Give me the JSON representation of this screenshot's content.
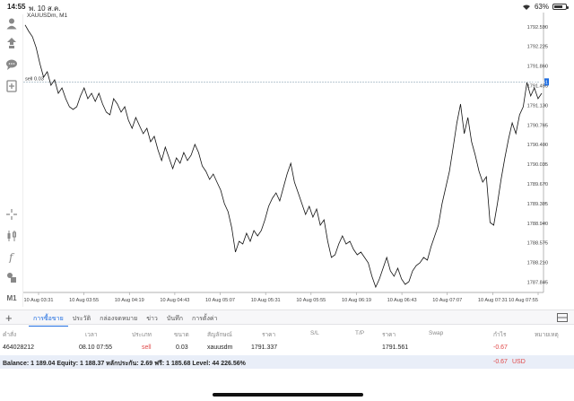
{
  "status_bar": {
    "time": "14:55",
    "date": "พ. 10 ส.ค.",
    "battery": "63%",
    "battery_level": 0.63
  },
  "chart": {
    "symbol": "XAUUSDm, M1",
    "bid_label": "sell 0.03",
    "current_price_badge": "1791.561",
    "colors": {
      "line": "#111111",
      "bid_line": "#8fa8b8",
      "badge": "#1e6ce0",
      "grid": "#dddddd"
    }
  },
  "chart_data": {
    "type": "line",
    "x_ticks": [
      "10 Aug 03:31",
      "10 Aug 03:55",
      "10 Aug 04:19",
      "10 Aug 04:43",
      "10 Aug 05:07",
      "10 Aug 05:31",
      "10 Aug 05:55",
      "10 Aug 06:19",
      "10 Aug 06:43",
      "10 Aug 07:07",
      "10 Aug 07:31",
      "10 Aug 07:55"
    ],
    "y_ticks": [
      "1792.590",
      "1792.225",
      "1791.860",
      "1791.495",
      "1791.130",
      "1790.765",
      "1790.400",
      "1790.035",
      "1789.670",
      "1789.305",
      "1788.940",
      "1788.575",
      "1788.210",
      "1787.845"
    ],
    "ylim": [
      1787.65,
      1792.75
    ],
    "xlim": [
      0,
      140
    ],
    "values": [
      1792.62,
      1792.5,
      1792.4,
      1792.2,
      1791.9,
      1791.65,
      1791.75,
      1791.5,
      1791.6,
      1791.35,
      1791.45,
      1791.25,
      1791.1,
      1791.05,
      1791.1,
      1791.3,
      1791.45,
      1791.25,
      1791.35,
      1791.2,
      1791.35,
      1791.15,
      1791.0,
      1790.95,
      1791.25,
      1791.15,
      1791.0,
      1791.1,
      1790.85,
      1790.7,
      1790.9,
      1790.75,
      1790.6,
      1790.7,
      1790.45,
      1790.55,
      1790.3,
      1790.1,
      1790.35,
      1790.15,
      1789.95,
      1790.15,
      1790.05,
      1790.25,
      1790.1,
      1790.2,
      1790.4,
      1790.25,
      1790.0,
      1789.9,
      1789.75,
      1789.85,
      1789.7,
      1789.55,
      1789.3,
      1789.15,
      1788.85,
      1788.4,
      1788.6,
      1788.55,
      1788.75,
      1788.6,
      1788.8,
      1788.7,
      1788.8,
      1789.0,
      1789.25,
      1789.4,
      1789.5,
      1789.35,
      1789.6,
      1789.85,
      1790.05,
      1789.7,
      1789.5,
      1789.3,
      1789.1,
      1789.25,
      1789.05,
      1789.2,
      1788.9,
      1789.0,
      1788.6,
      1788.3,
      1788.35,
      1788.55,
      1788.7,
      1788.55,
      1788.6,
      1788.45,
      1788.35,
      1788.4,
      1788.3,
      1788.2,
      1787.95,
      1787.75,
      1787.9,
      1788.1,
      1788.3,
      1788.05,
      1787.95,
      1788.1,
      1787.9,
      1787.8,
      1787.85,
      1788.05,
      1788.15,
      1788.2,
      1788.3,
      1788.25,
      1788.5,
      1788.7,
      1788.9,
      1789.3,
      1789.6,
      1789.9,
      1790.35,
      1790.8,
      1791.15,
      1790.6,
      1790.9,
      1790.45,
      1790.2,
      1789.9,
      1789.7,
      1789.8,
      1788.95,
      1788.9,
      1789.3,
      1789.75,
      1790.15,
      1790.5,
      1790.8,
      1790.6,
      1790.95,
      1791.1,
      1791.55,
      1791.3,
      1791.45,
      1791.25,
      1791.35
    ]
  },
  "tabs": [
    "การซื้อขาย",
    "ประวัติ",
    "กล่องจดหมาย",
    "ข่าว",
    "บันทึก",
    "การตั้งค่า"
  ],
  "table": {
    "headers": [
      "คำสั่ง",
      "เวลา",
      "ประเภท",
      "ขนาด",
      "สัญลักษณ์",
      "ราคา",
      "S/L",
      "T/P",
      "ราคา",
      "Swap",
      "กำไร",
      "หมายเหตุ"
    ],
    "row": {
      "ticket": "464028212",
      "time": "08.10 07:55",
      "type": "sell",
      "size": "0.03",
      "symbol": "xauusdm",
      "price": "1791.337",
      "sl": "",
      "tp": "",
      "current": "1791.561",
      "swap": "",
      "profit": "-0.67",
      "comment": ""
    }
  },
  "balance": {
    "text": "Balance: 1 189.04 Equity: 1 188.37 หลักประกัน: 2.69 ฟรี: 1 185.68 Level: 44 226.56%",
    "profit": "-0.67",
    "currency": "USD"
  }
}
